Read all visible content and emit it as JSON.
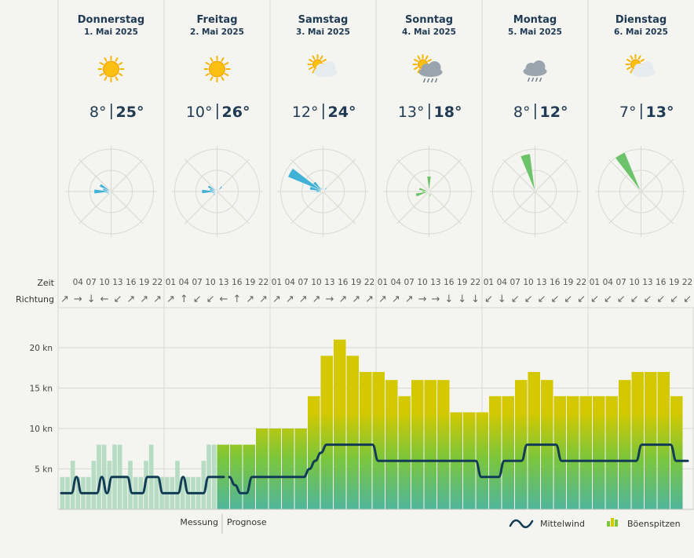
{
  "days": [
    {
      "name": "Donnerstag",
      "date": "1. Mai 2025",
      "icon": "sun-icon",
      "tmin": "8°",
      "tmax": "25°",
      "rose": [
        0,
        0,
        0,
        0,
        0,
        0,
        0,
        0,
        0,
        0,
        0,
        0,
        0,
        0,
        0,
        0.5,
        0.3,
        0.6,
        2.0,
        1.0,
        1.5,
        0,
        0,
        0
      ]
    },
    {
      "name": "Freitag",
      "date": "2. Mai 2025",
      "icon": "sun-icon",
      "tmin": "10°",
      "tmax": "26°",
      "rose": [
        0,
        0,
        0,
        0.8,
        0,
        0,
        0,
        0,
        0,
        0,
        0,
        0,
        0,
        0,
        0,
        0.6,
        0.4,
        0.6,
        1.8,
        0.9,
        1.2,
        0,
        0,
        0
      ]
    },
    {
      "name": "Samstag",
      "date": "3. Mai 2025",
      "icon": "sun-cloud-icon",
      "tmin": "12°",
      "tmax": "24°",
      "rose": [
        0,
        0,
        0.3,
        0.6,
        0.3,
        0,
        0,
        0,
        0,
        0,
        0,
        0,
        0,
        0,
        0,
        0,
        0,
        0,
        0.8,
        1.6,
        4.5,
        1.5,
        0.5,
        0.2
      ]
    },
    {
      "name": "Sonntag",
      "date": "4. Mai 2025",
      "icon": "sun-cloud-rain-icon",
      "tmin": "13°",
      "tmax": "18°",
      "rose": [
        1.8,
        0,
        0,
        0,
        0,
        0,
        0,
        0,
        0,
        0,
        0.4,
        0.6,
        0,
        0,
        0,
        0,
        0,
        1.6,
        0.8,
        1.2,
        0,
        0,
        0,
        0
      ]
    },
    {
      "name": "Montag",
      "date": "5. Mai 2025",
      "icon": "cloud-rain-icon",
      "tmin": "8°",
      "tmax": "12°",
      "rose": [
        0,
        0,
        0,
        0,
        0,
        0,
        0,
        0,
        0,
        0,
        0,
        0,
        0,
        0,
        0,
        0,
        0,
        0,
        0,
        0,
        0,
        0,
        0,
        4.5
      ]
    },
    {
      "name": "Dienstag",
      "date": "6. Mai 2025",
      "icon": "sun-cloud-icon",
      "tmin": "7°",
      "tmax": "13°",
      "rose": [
        0,
        0,
        0,
        0,
        0,
        0,
        0,
        0,
        0,
        0,
        0,
        0,
        0,
        0,
        0,
        0,
        0,
        0,
        0,
        0,
        0,
        0,
        5.0,
        0
      ]
    }
  ],
  "row_labels": {
    "time": "Zeit",
    "direction": "Richtung"
  },
  "hours": [
    "01",
    "04",
    "07",
    "10",
    "13",
    "16",
    "19",
    "22"
  ],
  "directions": [
    "↗",
    "→",
    "↓",
    "←",
    "↙",
    "↗",
    "↗",
    "↗",
    "↗",
    "↑",
    "↙",
    "↙",
    "←",
    "↑",
    "↗",
    "↗",
    "↗",
    "↗",
    "↗",
    "↗",
    "→",
    "↗",
    "↗",
    "↗",
    "↗",
    "↗",
    "↗",
    "→",
    "→",
    "↓",
    "↓",
    "↓",
    "↙",
    "↓",
    "↙",
    "↙",
    "↙",
    "↙",
    "↙",
    "↙",
    "↙",
    "↙",
    "↙",
    "↙",
    "↙",
    "↙",
    "↙",
    "↙"
  ],
  "labels": {
    "measurement": "Messung",
    "forecast": "Prognose"
  },
  "legend": {
    "mean": "Mittelwind",
    "gust": "Böenspitzen"
  },
  "colors": {
    "gust_top": "#d4c800",
    "gust_mid": "#7cc63a",
    "gust_bottom": "#4fb59c",
    "measured_bar": "#b6dcc3",
    "mean_line": "#123b55",
    "rose_blue": "#3fb0d6",
    "rose_green": "#6cc36a",
    "grid": "#d9d9d3"
  },
  "chart_data": {
    "type": "bar",
    "ylabel": "",
    "yticks": [
      "5 kn",
      "10 kn",
      "15 kn",
      "20 kn"
    ],
    "ytick_values": [
      5,
      10,
      15,
      20
    ],
    "ylim": [
      0,
      21.5
    ],
    "measurement_gusts": [
      4,
      4,
      6,
      4,
      4,
      4,
      6,
      8,
      8,
      6,
      8,
      8,
      4,
      6,
      4,
      4,
      6,
      8,
      4,
      4,
      4,
      4,
      6,
      4,
      4,
      4,
      4,
      6,
      8,
      8
    ],
    "measurement_mean": [
      2,
      2,
      2,
      4,
      2,
      2,
      2,
      2,
      4,
      2,
      4,
      4,
      4,
      4,
      2,
      2,
      2,
      4,
      4,
      4,
      2,
      2,
      2,
      2,
      4,
      2,
      2,
      2,
      2,
      4,
      4,
      4,
      4
    ],
    "forecast_gusts": [
      8,
      8,
      8,
      10,
      10,
      10,
      10,
      14,
      19,
      21,
      19,
      17,
      17,
      16,
      14,
      16,
      16,
      16,
      12,
      12,
      12,
      14,
      14,
      16,
      17,
      16,
      14,
      14,
      14,
      14,
      14,
      16,
      17,
      17,
      17,
      14
    ],
    "forecast_mean": [
      4,
      3,
      2,
      2,
      4,
      4,
      4,
      4,
      4,
      4,
      4,
      4,
      4,
      4,
      5,
      6,
      7,
      8,
      8,
      8,
      8,
      8,
      8,
      8,
      8,
      8,
      6,
      6,
      6,
      6,
      6,
      6,
      6,
      6,
      6,
      6,
      6,
      6,
      6,
      6,
      6,
      6,
      6,
      6,
      4,
      4,
      4,
      4,
      6,
      6,
      6,
      6,
      8,
      8,
      8,
      8,
      8,
      8,
      6,
      6,
      6,
      6,
      6,
      6,
      6,
      6,
      6,
      6,
      6,
      6,
      6,
      6,
      8,
      8,
      8,
      8,
      8,
      8,
      6,
      6,
      6
    ]
  }
}
